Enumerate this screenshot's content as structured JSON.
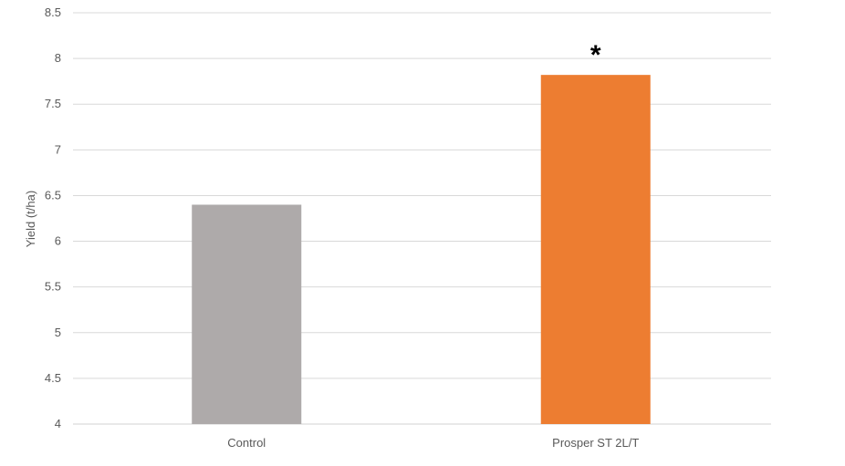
{
  "chart_data": {
    "type": "bar",
    "title": "",
    "xlabel": "",
    "ylabel": "Yield (t/ha)",
    "categories": [
      "Control",
      "Prosper ST 2L/T"
    ],
    "values": [
      6.4,
      7.82
    ],
    "colors": [
      "#aeaaaa",
      "#ed7d31"
    ],
    "ylim": [
      4,
      8.5
    ],
    "yticks": [
      "4",
      "4.5",
      "5",
      "5.5",
      "6",
      "6.5",
      "7",
      "7.5",
      "8",
      "8.5"
    ],
    "ytick_values": [
      4,
      4.5,
      5,
      5.5,
      6,
      6.5,
      7,
      7.5,
      8,
      8.5
    ],
    "grid": true,
    "annotations": [
      {
        "category": "Prosper ST 2L/T",
        "text": "*"
      }
    ]
  }
}
